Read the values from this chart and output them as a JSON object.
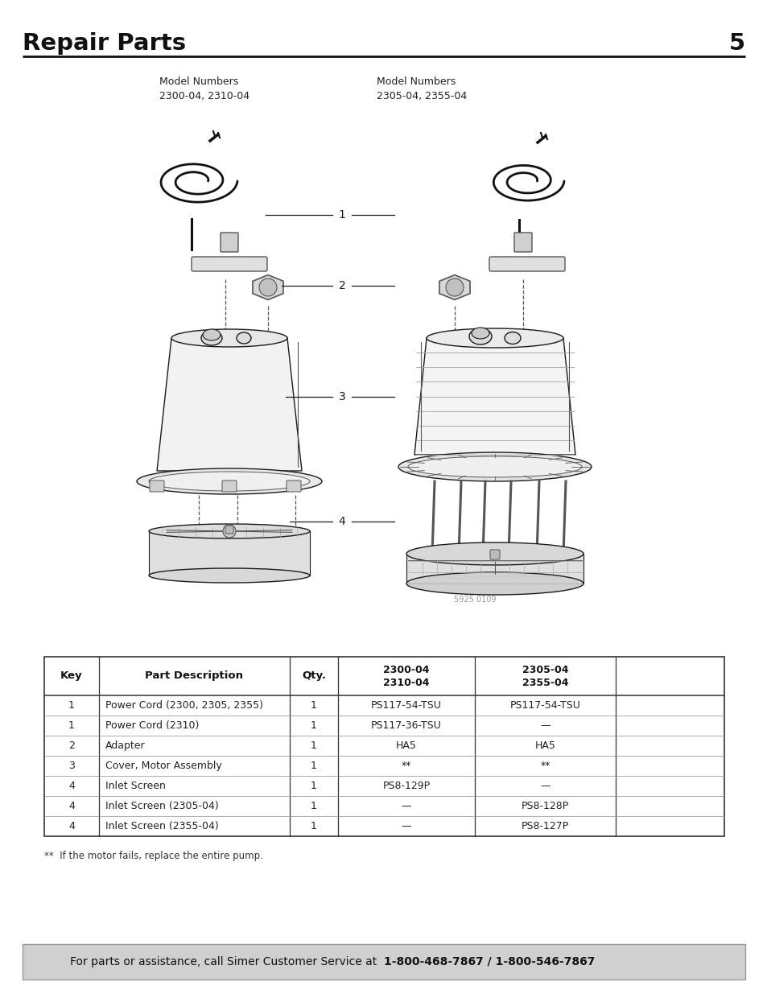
{
  "title": "Repair Parts",
  "page_number": "5",
  "bg_color": "#ffffff",
  "title_color": "#1a1a1a",
  "model_label_left": "Model Numbers\n2300-04, 2310-04",
  "model_label_right": "Model Numbers\n2305-04, 2355-04",
  "image_credit": "5925 0109",
  "footnote": "**  If the motor fails, replace the entire pump.",
  "footer_prefix": "For parts or assistance, call Simer Customer Service at  ",
  "footer_bold": "1-800-468-7867 / 1-800-546-7867",
  "table_header_col1": "Key",
  "table_header_col2": "Part Description",
  "table_header_col3": "Qty.",
  "table_header_col4a": "2300-04",
  "table_header_col4b": "2310-04",
  "table_header_col5a": "2305-04",
  "table_header_col5b": "2355-04",
  "table_rows": [
    [
      "1",
      "Power Cord (2300, 2305, 2355)",
      "1",
      "PS117-54-TSU",
      "PS117-54-TSU"
    ],
    [
      "1",
      "Power Cord (2310)",
      "1",
      "PS117-36-TSU",
      "—"
    ],
    [
      "2",
      "Adapter",
      "1",
      "HA5",
      "HA5"
    ],
    [
      "3",
      "Cover, Motor Assembly",
      "1",
      "**",
      "**"
    ],
    [
      "4",
      "Inlet Screen",
      "1",
      "PS8-129P",
      "—"
    ],
    [
      "4",
      "Inlet Screen (2305-04)",
      "1",
      "—",
      "PS8-128P"
    ],
    [
      "4",
      "Inlet Screen (2355-04)",
      "1",
      "—",
      "PS8-127P"
    ]
  ]
}
